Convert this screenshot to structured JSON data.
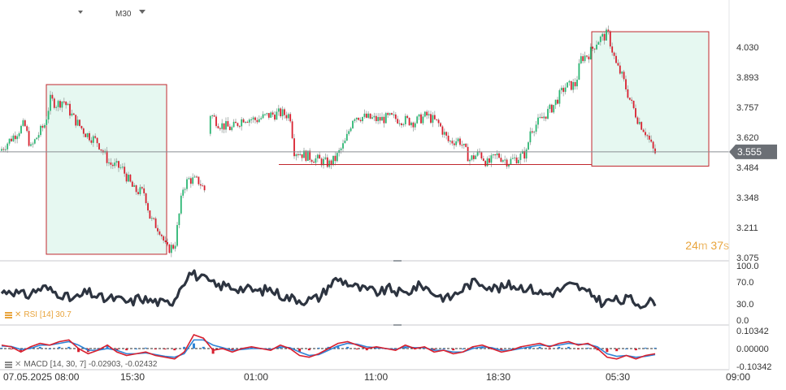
{
  "toolbar": {
    "timeframe": "M30"
  },
  "countdown": {
    "minutes": "24",
    "m": "m",
    "seconds": "37",
    "s": "s"
  },
  "colors": {
    "bull": "#2bb673",
    "bear": "#d8202f",
    "zone_fill": "#e6f8f1",
    "zone_border": "#c0282e",
    "rsi_line": "#2d3440",
    "macd_line": "#d8202f",
    "macd_signal": "#2f84d6",
    "countdown": "#e8a33a",
    "price_tag": "#6b6f75"
  },
  "icons": {
    "indicator": "bars-icon",
    "close": "close-icon",
    "timeframe_caret": "caret-down-icon",
    "hidden_indicator": "bars-icon"
  },
  "legends": {
    "rsi": "RSI [14] 30.7",
    "macd": "MACD [14, 30, 7] -0.02903, -0.02432"
  },
  "price_axis": {
    "ticks": [
      "4.030",
      "3.893",
      "3.757",
      "3.620",
      "3.484",
      "3.348",
      "3.211",
      "3.075"
    ],
    "current": "3.555"
  },
  "rsi_axis": {
    "ticks": [
      "100.0",
      "70.0",
      "30.0",
      "0.0"
    ]
  },
  "macd_axis": {
    "ticks": [
      "0.10342",
      "0.00000",
      "-0.10342"
    ]
  },
  "time_axis": {
    "ticks": [
      "07.05.2025 08:00",
      "15:30",
      "01:00",
      "11:00",
      "18:30",
      "05:30",
      "09:00"
    ]
  },
  "chart_data": {
    "type": "candlestick",
    "timeframe": "M30",
    "symbol_price_current": 3.555,
    "price_range": [
      3.075,
      4.1
    ],
    "price_path": [
      [
        0,
        3.56
      ],
      [
        15,
        3.62
      ],
      [
        30,
        3.68
      ],
      [
        38,
        3.57
      ],
      [
        45,
        3.62
      ],
      [
        55,
        3.68
      ],
      [
        62,
        3.79
      ],
      [
        70,
        3.77
      ],
      [
        78,
        3.79
      ],
      [
        90,
        3.71
      ],
      [
        105,
        3.64
      ],
      [
        120,
        3.6
      ],
      [
        135,
        3.5
      ],
      [
        150,
        3.48
      ],
      [
        165,
        3.38
      ],
      [
        178,
        3.37
      ],
      [
        185,
        3.25
      ],
      [
        197,
        3.2
      ],
      [
        205,
        3.11
      ],
      [
        215,
        3.13
      ],
      [
        225,
        3.39
      ],
      [
        232,
        3.43
      ],
      [
        245,
        3.42
      ],
      [
        252,
        3.38
      ],
      [
        258,
        3.73
      ],
      [
        270,
        3.68
      ],
      [
        285,
        3.66
      ],
      [
        300,
        3.71
      ],
      [
        315,
        3.7
      ],
      [
        330,
        3.72
      ],
      [
        345,
        3.73
      ],
      [
        357,
        3.72
      ],
      [
        362,
        3.56
      ],
      [
        375,
        3.54
      ],
      [
        390,
        3.52
      ],
      [
        405,
        3.5
      ],
      [
        412,
        3.52
      ],
      [
        425,
        3.6
      ],
      [
        435,
        3.72
      ],
      [
        450,
        3.71
      ],
      [
        465,
        3.7
      ],
      [
        480,
        3.71
      ],
      [
        495,
        3.7
      ],
      [
        510,
        3.69
      ],
      [
        525,
        3.72
      ],
      [
        540,
        3.68
      ],
      [
        552,
        3.6
      ],
      [
        565,
        3.61
      ],
      [
        578,
        3.52
      ],
      [
        590,
        3.55
      ],
      [
        600,
        3.5
      ],
      [
        612,
        3.54
      ],
      [
        625,
        3.51
      ],
      [
        638,
        3.53
      ],
      [
        648,
        3.55
      ],
      [
        652,
        3.65
      ],
      [
        665,
        3.7
      ],
      [
        680,
        3.76
      ],
      [
        695,
        3.85
      ],
      [
        708,
        3.86
      ],
      [
        715,
        3.98
      ],
      [
        725,
        4.0
      ],
      [
        735,
        4.06
      ],
      [
        748,
        4.09
      ],
      [
        758,
        3.95
      ],
      [
        765,
        3.9
      ],
      [
        775,
        3.79
      ],
      [
        785,
        3.7
      ],
      [
        795,
        3.64
      ],
      [
        805,
        3.55
      ]
    ],
    "zones": [
      {
        "t_start": 57,
        "t_end": 205,
        "price_top": 3.86,
        "price_bottom": 3.09
      },
      {
        "t_start": 728,
        "t_end": 872,
        "price_top": 4.1,
        "price_bottom": 3.49
      }
    ],
    "support_line": {
      "t_start": 343,
      "t_end": 728,
      "price": 3.497
    },
    "rsi": {
      "range": [
        0,
        100
      ],
      "values": [
        50,
        56,
        48,
        45,
        55,
        60,
        52,
        48,
        38,
        42,
        52,
        44,
        38,
        40,
        36,
        32,
        42,
        36,
        34,
        30,
        36,
        68,
        88,
        78,
        72,
        62,
        64,
        60,
        58,
        56,
        52,
        58,
        50,
        42,
        40,
        36,
        38,
        42,
        62,
        76,
        70,
        62,
        56,
        54,
        50,
        58,
        52,
        48,
        60,
        64,
        52,
        44,
        40,
        50,
        62,
        70,
        68,
        60,
        58,
        64,
        62,
        60,
        55,
        48,
        50,
        56,
        64,
        62,
        50,
        44,
        30,
        38,
        34,
        40,
        30,
        32,
        35
      ]
    },
    "macd": {
      "range": [
        -0.10342,
        0.10342
      ],
      "line": [
        0.02,
        0.01,
        -0.02,
        0.01,
        0.03,
        0.02,
        0.04,
        0.05,
        0.0,
        -0.03,
        -0.01,
        0.02,
        -0.02,
        -0.04,
        -0.03,
        -0.02,
        -0.04,
        -0.05,
        -0.06,
        -0.02,
        0.08,
        0.06,
        -0.01,
        0.0,
        -0.02,
        0.0,
        0.01,
        0.0,
        -0.01,
        0.02,
        0.0,
        -0.04,
        -0.05,
        -0.03,
        0.0,
        0.03,
        0.04,
        0.02,
        0.0,
        0.01,
        0.0,
        -0.01,
        0.02,
        0.0,
        0.01,
        -0.02,
        -0.01,
        -0.03,
        -0.02,
        0.01,
        0.02,
        0.0,
        -0.02,
        -0.01,
        0.01,
        0.02,
        0.03,
        0.01,
        0.03,
        0.04,
        0.02,
        0.03,
        0.0,
        -0.05,
        -0.06,
        -0.04,
        -0.06,
        -0.04,
        -0.03
      ],
      "signal": [
        0.015,
        0.012,
        -0.005,
        0.0,
        0.02,
        0.02,
        0.03,
        0.04,
        0.02,
        -0.01,
        -0.01,
        0.0,
        -0.01,
        -0.03,
        -0.03,
        -0.025,
        -0.035,
        -0.045,
        -0.05,
        -0.03,
        0.05,
        0.05,
        0.02,
        0.005,
        -0.01,
        -0.005,
        0.0,
        0.0,
        -0.005,
        0.01,
        0.005,
        -0.02,
        -0.04,
        -0.035,
        -0.01,
        0.015,
        0.03,
        0.025,
        0.01,
        0.005,
        0.0,
        -0.005,
        0.01,
        0.005,
        0.005,
        -0.01,
        -0.01,
        -0.02,
        -0.02,
        0.0,
        0.01,
        0.005,
        -0.01,
        -0.01,
        0.0,
        0.01,
        0.02,
        0.015,
        0.02,
        0.03,
        0.025,
        0.025,
        0.01,
        -0.03,
        -0.045,
        -0.04,
        -0.05,
        -0.045,
        -0.035
      ]
    }
  }
}
